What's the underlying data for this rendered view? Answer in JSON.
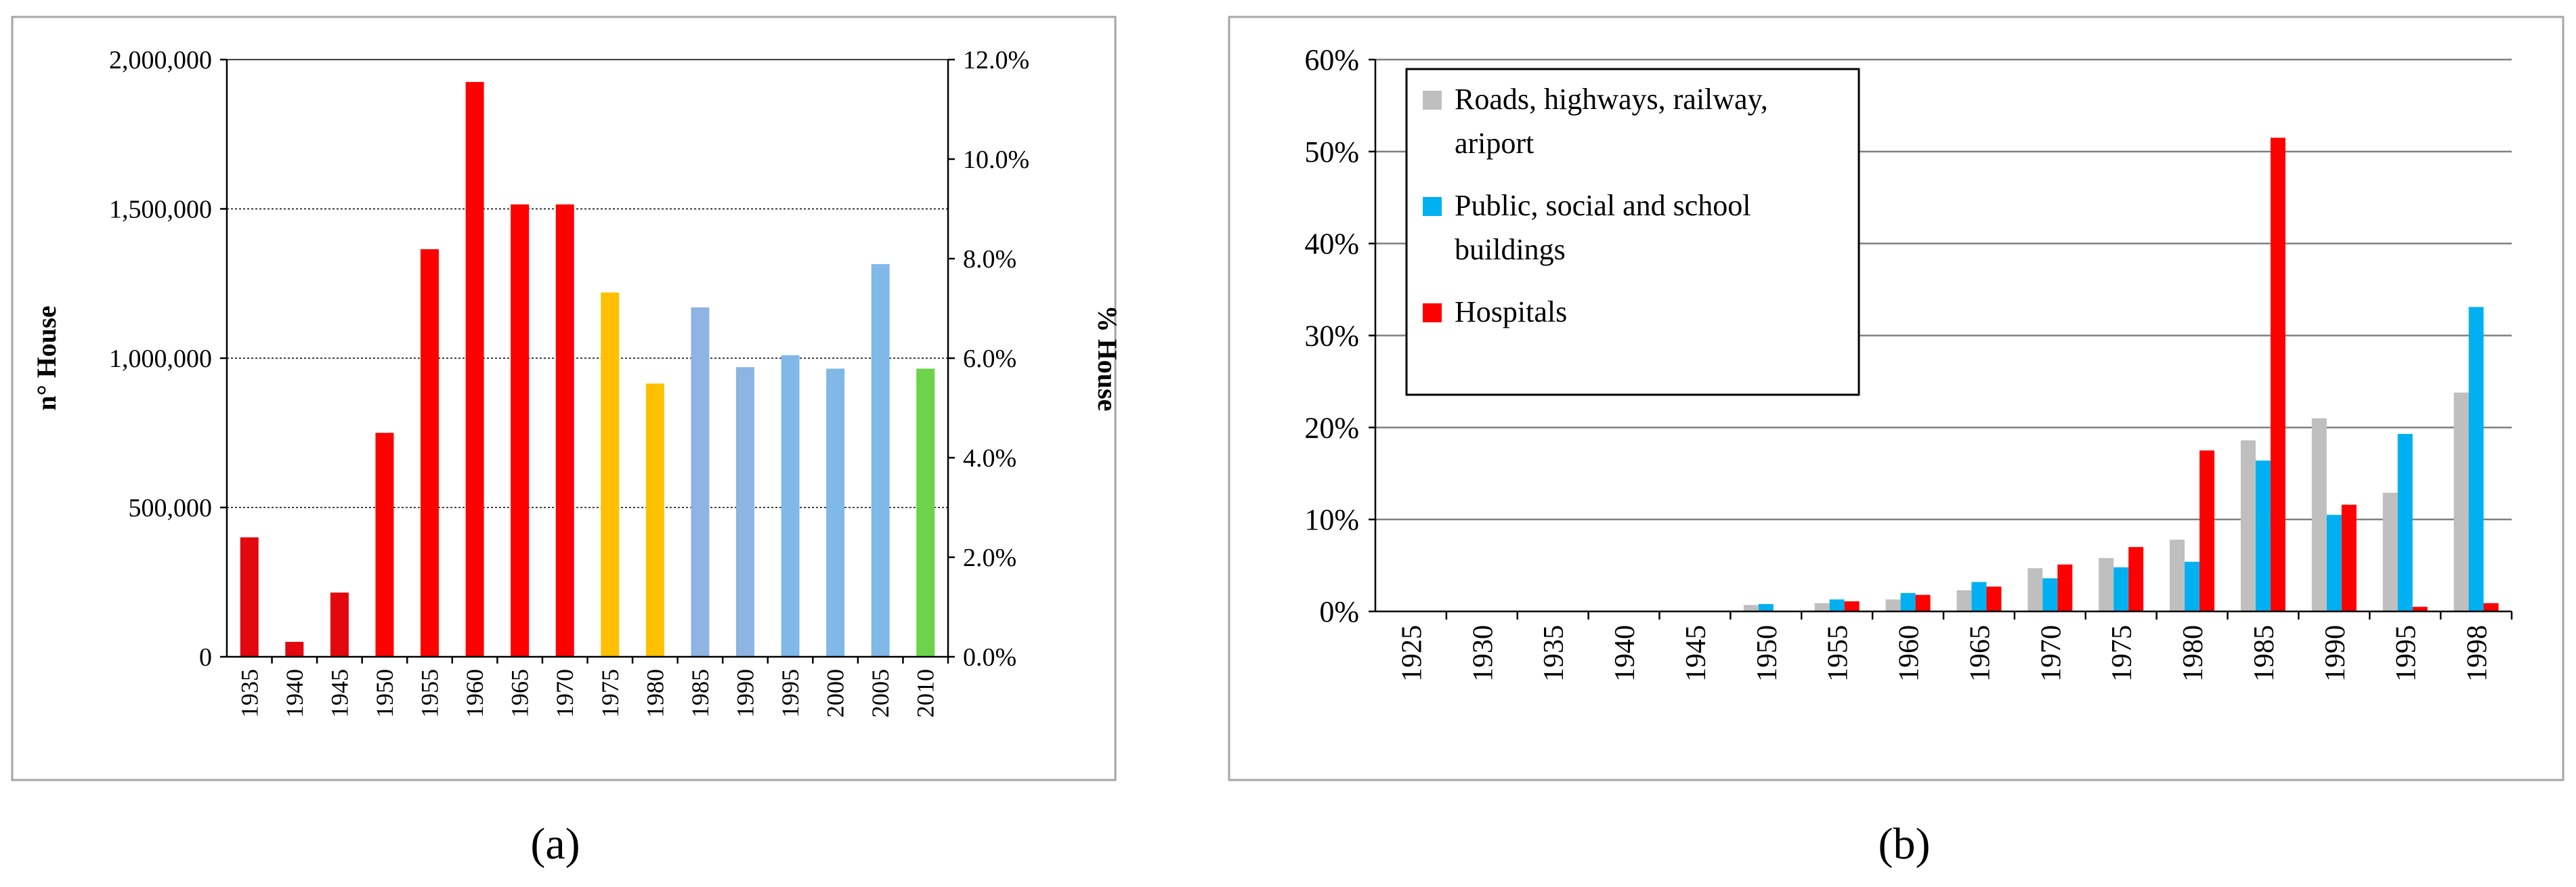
{
  "chart_data": [
    {
      "type": "bar",
      "panel_label": "(a)",
      "categories": [
        "1935",
        "1940",
        "1945",
        "1950",
        "1955",
        "1960",
        "1965",
        "1970",
        "1975",
        "1980",
        "1985",
        "1990",
        "1995",
        "2000",
        "2005",
        "2010"
      ],
      "values": [
        400000,
        50000,
        215000,
        750000,
        1365000,
        1925000,
        1515000,
        1515000,
        1220000,
        915000,
        1170000,
        970000,
        1010000,
        965000,
        1315000,
        965000
      ],
      "bar_colors": [
        "#e3070e",
        "#e3070e",
        "#e3070e",
        "#ff0000",
        "#ff0000",
        "#ff0000",
        "#ff0000",
        "#ff0000",
        "#ffc000",
        "#ffc000",
        "#8db4e2",
        "#8db4e2",
        "#80b8e8",
        "#80b8e8",
        "#80b8e8",
        "#6cd34a"
      ],
      "ylabel": "n° House",
      "ylabel2": "% House",
      "ylim": [
        0,
        2000000
      ],
      "ylim2": [
        0,
        12
      ],
      "yticks": [
        0,
        500000,
        1000000,
        1500000,
        2000000
      ],
      "ytick_labels": [
        "0",
        "500,000",
        "1,000,000",
        "1,500,000",
        "2,000,000"
      ],
      "y2ticks": [
        0,
        2,
        4,
        6,
        8,
        10,
        12
      ],
      "y2tick_labels": [
        "0.0%",
        "2.0%",
        "4.0%",
        "6.0%",
        "8.0%",
        "10.0%",
        "12.0%"
      ],
      "xlabel": "",
      "grid": true,
      "legend": null
    },
    {
      "type": "bar",
      "panel_label": "(b)",
      "categories": [
        "1925",
        "1930",
        "1935",
        "1940",
        "1945",
        "1950",
        "1955",
        "1960",
        "1965",
        "1970",
        "1975",
        "1980",
        "1985",
        "1990",
        "1995",
        "1998"
      ],
      "series": [
        {
          "name": "Roads, highways, railway, ariport",
          "legend_lines": [
            "Roads, highways, railway,",
            "ariport"
          ],
          "color": "#bfbfbf",
          "values": [
            0,
            0,
            0,
            0,
            0,
            0.7,
            0.9,
            1.3,
            2.3,
            4.7,
            5.8,
            7.8,
            18.6,
            21.0,
            12.9,
            23.8
          ]
        },
        {
          "name": "Public, social and school buildings",
          "legend_lines": [
            "Public, social and school",
            "buildings"
          ],
          "color": "#00b0f0",
          "values": [
            0,
            0,
            0,
            0,
            0,
            0.8,
            1.3,
            2.0,
            3.2,
            3.6,
            4.8,
            5.4,
            16.4,
            10.5,
            19.3,
            33.1
          ]
        },
        {
          "name": "Hospitals",
          "legend_lines": [
            "Hospitals"
          ],
          "color": "#ff0000",
          "values": [
            0,
            0,
            0,
            0,
            0,
            0,
            1.1,
            1.8,
            2.7,
            5.1,
            7.0,
            17.5,
            51.5,
            11.6,
            0.5,
            0.9
          ]
        }
      ],
      "ylim": [
        0,
        60
      ],
      "yticks": [
        0,
        10,
        20,
        30,
        40,
        50,
        60
      ],
      "ytick_labels": [
        "0%",
        "10%",
        "20%",
        "30%",
        "40%",
        "50%",
        "60%"
      ],
      "xlabel": "",
      "ylabel": "",
      "grid": true,
      "legend": "top-left"
    }
  ]
}
